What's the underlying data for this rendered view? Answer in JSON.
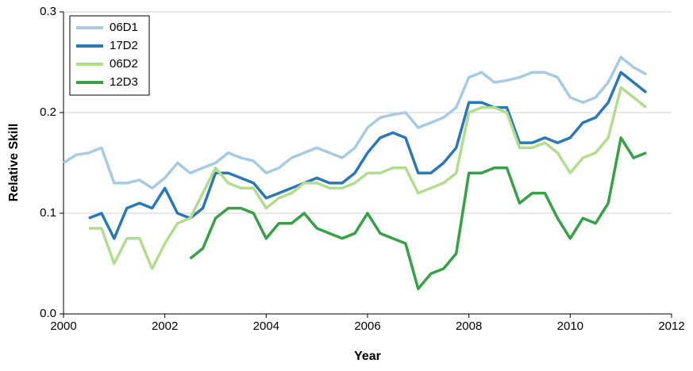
{
  "chart_data": {
    "type": "line",
    "x_label": "Year",
    "y_label": "Relative Skill",
    "x": [
      2000,
      2000.25,
      2000.5,
      2000.75,
      2001,
      2001.25,
      2001.5,
      2001.75,
      2002,
      2002.25,
      2002.5,
      2002.75,
      2003,
      2003.25,
      2003.5,
      2003.75,
      2004,
      2004.25,
      2004.5,
      2004.75,
      2005,
      2005.25,
      2005.5,
      2005.75,
      2006,
      2006.25,
      2006.5,
      2006.75,
      2007,
      2007.25,
      2007.5,
      2007.75,
      2008,
      2008.25,
      2008.5,
      2008.75,
      2009,
      2009.25,
      2009.5,
      2009.75,
      2010,
      2010.25,
      2010.5,
      2010.75,
      2011,
      2011.25,
      2011.5
    ],
    "series": [
      {
        "name": "06D1",
        "color": "#a6cbe3",
        "values": [
          0.15,
          0.158,
          0.16,
          0.165,
          0.13,
          0.13,
          0.133,
          0.125,
          0.135,
          0.15,
          0.14,
          0.145,
          0.15,
          0.16,
          0.155,
          0.152,
          0.14,
          0.145,
          0.155,
          0.16,
          0.165,
          0.16,
          0.155,
          0.165,
          0.185,
          0.195,
          0.198,
          0.2,
          0.185,
          0.19,
          0.195,
          0.205,
          0.235,
          0.24,
          0.23,
          0.232,
          0.235,
          0.24,
          0.24,
          0.235,
          0.215,
          0.21,
          0.215,
          0.23,
          0.255,
          0.245,
          0.238
        ]
      },
      {
        "name": "17D2",
        "color": "#2a78b5",
        "values": [
          null,
          null,
          0.095,
          0.1,
          0.075,
          0.105,
          0.11,
          0.105,
          0.125,
          0.1,
          0.095,
          0.105,
          0.14,
          0.14,
          0.135,
          0.13,
          0.115,
          0.12,
          0.125,
          0.13,
          0.135,
          0.13,
          0.13,
          0.14,
          0.16,
          0.175,
          0.18,
          0.175,
          0.14,
          0.14,
          0.15,
          0.165,
          0.21,
          0.21,
          0.205,
          0.205,
          0.17,
          0.17,
          0.175,
          0.17,
          0.175,
          0.19,
          0.195,
          0.21,
          0.24,
          0.23,
          0.22
        ]
      },
      {
        "name": "06D2",
        "color": "#b3dc8f",
        "values": [
          null,
          null,
          0.085,
          0.085,
          0.05,
          0.075,
          0.075,
          0.045,
          0.07,
          0.09,
          0.095,
          0.12,
          0.145,
          0.13,
          0.125,
          0.125,
          0.105,
          0.115,
          0.12,
          0.13,
          0.13,
          0.125,
          0.125,
          0.13,
          0.14,
          0.14,
          0.145,
          0.145,
          0.12,
          0.125,
          0.13,
          0.14,
          0.2,
          0.205,
          0.205,
          0.2,
          0.165,
          0.165,
          0.17,
          0.16,
          0.14,
          0.155,
          0.16,
          0.175,
          0.225,
          0.215,
          0.205
        ]
      },
      {
        "name": "12D3",
        "color": "#38a046",
        "values": [
          null,
          null,
          null,
          null,
          null,
          null,
          null,
          null,
          null,
          null,
          0.055,
          0.065,
          0.095,
          0.105,
          0.105,
          0.1,
          0.075,
          0.09,
          0.09,
          0.1,
          0.085,
          0.08,
          0.075,
          0.08,
          0.1,
          0.08,
          0.075,
          0.07,
          0.025,
          0.04,
          0.045,
          0.06,
          0.14,
          0.14,
          0.145,
          0.145,
          0.11,
          0.12,
          0.12,
          0.095,
          0.075,
          0.095,
          0.09,
          0.11,
          0.175,
          0.155,
          0.16
        ]
      }
    ],
    "xlim": [
      2000,
      2012
    ],
    "xticks": [
      2000,
      2002,
      2004,
      2006,
      2008,
      2010,
      2012
    ],
    "ylim": [
      0,
      0.3
    ],
    "yticks": [
      {
        "value": 0,
        "label": "0.0"
      },
      0.1,
      0.2,
      0.3
    ],
    "grid": true,
    "legend": "top-left"
  }
}
